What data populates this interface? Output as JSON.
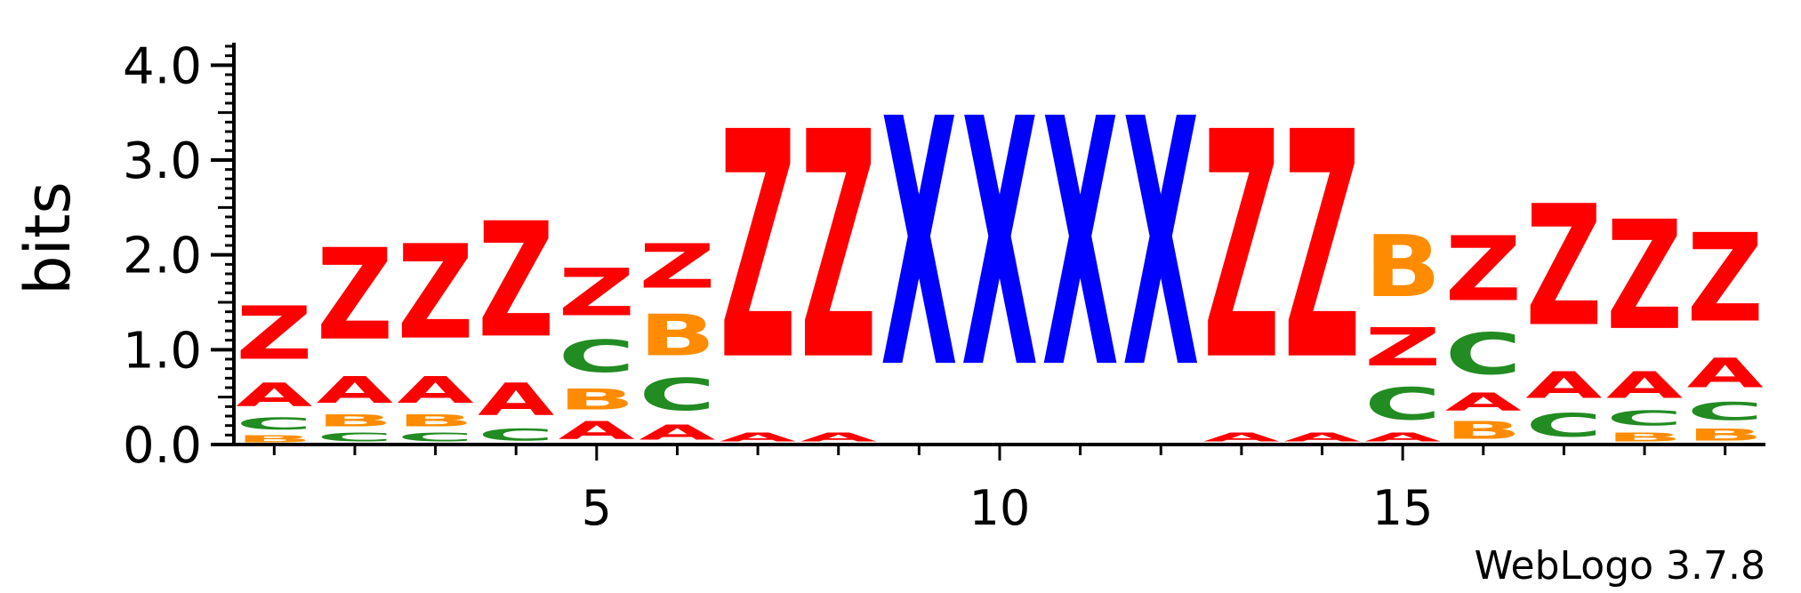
{
  "chart_data": {
    "type": "sequence_logo",
    "ylabel": "bits",
    "ylim": [
      0,
      4.2
    ],
    "yticks": [
      "0.0",
      "1.0",
      "2.0",
      "3.0",
      "4.0"
    ],
    "xticks": [
      {
        "position": 5,
        "label": "5"
      },
      {
        "position": 10,
        "label": "10"
      },
      {
        "position": 15,
        "label": "15"
      }
    ],
    "colors": {
      "Z": "#ff0000",
      "A": "#ff0000",
      "X": "#0000ff",
      "B": "#ff8c00",
      "C": "#228b22"
    },
    "positions": [
      {
        "pos": 1,
        "stack": [
          {
            "letter": "B",
            "value": 0.12
          },
          {
            "letter": "C",
            "value": 0.2
          },
          {
            "letter": "A",
            "value": 0.4
          },
          {
            "letter": "Z",
            "value": 0.9
          }
        ]
      },
      {
        "pos": 2,
        "stack": [
          {
            "letter": "C",
            "value": 0.15
          },
          {
            "letter": "B",
            "value": 0.2
          },
          {
            "letter": "A",
            "value": 0.45
          },
          {
            "letter": "Z",
            "value": 1.55
          }
        ]
      },
      {
        "pos": 3,
        "stack": [
          {
            "letter": "C",
            "value": 0.15
          },
          {
            "letter": "B",
            "value": 0.2
          },
          {
            "letter": "A",
            "value": 0.45
          },
          {
            "letter": "Z",
            "value": 1.6
          }
        ]
      },
      {
        "pos": 4,
        "stack": [
          {
            "letter": "C",
            "value": 0.2
          },
          {
            "letter": "A",
            "value": 0.55
          },
          {
            "letter": "Z",
            "value": 1.95
          }
        ]
      },
      {
        "pos": 5,
        "stack": [
          {
            "letter": "A",
            "value": 0.3
          },
          {
            "letter": "B",
            "value": 0.35
          },
          {
            "letter": "C",
            "value": 0.55
          },
          {
            "letter": "Z",
            "value": 0.8
          }
        ]
      },
      {
        "pos": 6,
        "stack": [
          {
            "letter": "A",
            "value": 0.25
          },
          {
            "letter": "C",
            "value": 0.55
          },
          {
            "letter": "B",
            "value": 0.7
          },
          {
            "letter": "Z",
            "value": 0.75
          }
        ]
      },
      {
        "pos": 7,
        "stack": [
          {
            "letter": "A",
            "value": 0.15
          },
          {
            "letter": "Z",
            "value": 3.85
          }
        ]
      },
      {
        "pos": 8,
        "stack": [
          {
            "letter": "A",
            "value": 0.15
          },
          {
            "letter": "Z",
            "value": 3.85
          }
        ]
      },
      {
        "pos": 9,
        "stack": [
          {
            "letter": "X",
            "value": 4.2
          }
        ]
      },
      {
        "pos": 10,
        "stack": [
          {
            "letter": "X",
            "value": 4.2
          }
        ]
      },
      {
        "pos": 11,
        "stack": [
          {
            "letter": "X",
            "value": 4.2
          }
        ]
      },
      {
        "pos": 12,
        "stack": [
          {
            "letter": "X",
            "value": 4.2
          }
        ]
      },
      {
        "pos": 13,
        "stack": [
          {
            "letter": "A",
            "value": 0.15
          },
          {
            "letter": "Z",
            "value": 3.85
          }
        ]
      },
      {
        "pos": 14,
        "stack": [
          {
            "letter": "A",
            "value": 0.15
          },
          {
            "letter": "Z",
            "value": 3.85
          }
        ]
      },
      {
        "pos": 15,
        "stack": [
          {
            "letter": "A",
            "value": 0.15
          },
          {
            "letter": "C",
            "value": 0.55
          },
          {
            "letter": "Z",
            "value": 0.65
          },
          {
            "letter": "B",
            "value": 1.05
          }
        ]
      },
      {
        "pos": 16,
        "stack": [
          {
            "letter": "B",
            "value": 0.3
          },
          {
            "letter": "A",
            "value": 0.3
          },
          {
            "letter": "C",
            "value": 0.7
          },
          {
            "letter": "Z",
            "value": 1.1
          }
        ]
      },
      {
        "pos": 17,
        "stack": [
          {
            "letter": "C",
            "value": 0.4
          },
          {
            "letter": "A",
            "value": 0.45
          },
          {
            "letter": "Z",
            "value": 2.05
          }
        ]
      },
      {
        "pos": 18,
        "stack": [
          {
            "letter": "B",
            "value": 0.15
          },
          {
            "letter": "C",
            "value": 0.25
          },
          {
            "letter": "A",
            "value": 0.45
          },
          {
            "letter": "Z",
            "value": 1.85
          }
        ]
      },
      {
        "pos": 19,
        "stack": [
          {
            "letter": "B",
            "value": 0.2
          },
          {
            "letter": "C",
            "value": 0.3
          },
          {
            "letter": "A",
            "value": 0.5
          },
          {
            "letter": "Z",
            "value": 1.5
          }
        ]
      }
    ]
  },
  "footer": {
    "credit": "WebLogo 3.7.8"
  }
}
